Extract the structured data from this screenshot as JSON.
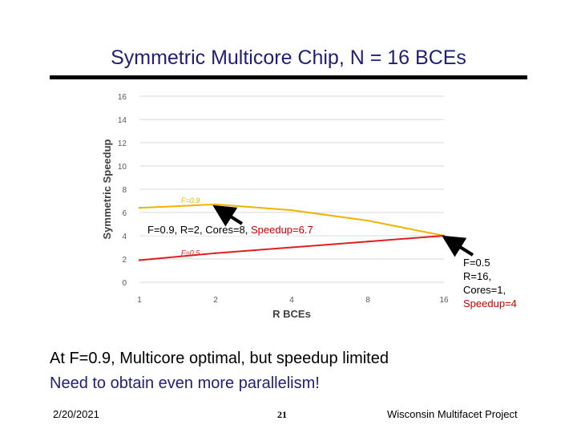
{
  "slide": {
    "title": "Symmetric Multicore Chip, N = 16 BCEs",
    "annotation_left": {
      "prefix": "F=0.9, R=2, Cores=8, ",
      "speedup": "Speedup=6.7"
    },
    "annotation_right": {
      "line1": "F=0.5",
      "line2": "R=16,",
      "line3": "Cores=1,",
      "line4": "Speedup=4"
    },
    "bullets": [
      "At F=0.9, Multicore optimal, but speedup limited",
      "Need to obtain even more parallelism!"
    ],
    "footer": {
      "date": "2/20/2021",
      "page": "21",
      "project": "Wisconsin Multifacet Project"
    }
  },
  "colors": {
    "title": "#1f1f7a",
    "series_f09": "#f0b400",
    "series_f05": "#e02020",
    "highlight": "#cc0000"
  },
  "chart_data": {
    "type": "line",
    "title": "",
    "xlabel": "R BCEs",
    "ylabel": "Symmetric Speedup",
    "categories": [
      "1",
      "2",
      "4",
      "8",
      "16"
    ],
    "ylim": [
      0,
      16
    ],
    "yticks": [
      0,
      2,
      4,
      6,
      8,
      10,
      12,
      14,
      16
    ],
    "grid": true,
    "series": [
      {
        "name": "F=0.9",
        "values": [
          6.4,
          6.7,
          6.2,
          5.3,
          4.0
        ]
      },
      {
        "name": "F=0.5",
        "values": [
          1.9,
          2.5,
          3.0,
          3.5,
          4.0
        ]
      }
    ]
  }
}
